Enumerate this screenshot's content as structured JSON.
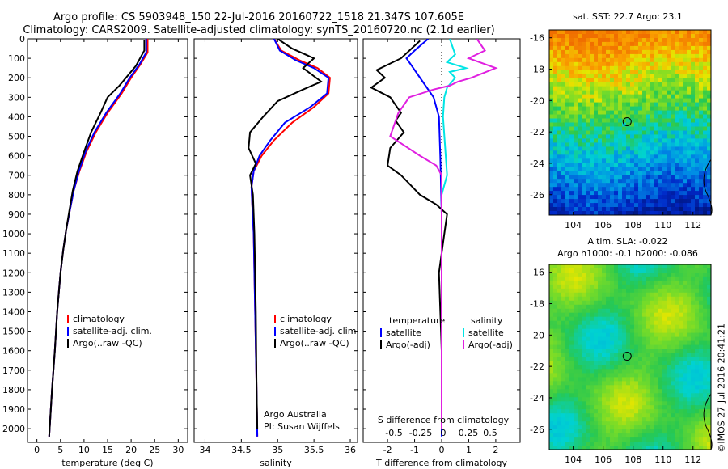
{
  "header": {
    "line1": "Argo profile: CS 5903948_150 22-Jul-2016 20160722_1518 21.347S 107.605E",
    "line2": "Climatology: CARS2009. Satellite-adjusted climatology: synTS_20160720.nc (2.1d earlier)"
  },
  "credit": "©IMOS 27-Jul-2016 20:41:21",
  "colors": {
    "clim": "#ff0000",
    "sat": "#0000ff",
    "argo": "#000000",
    "sal_sat": "#00e5e5",
    "sal_argo": "#e020e0"
  },
  "chart_data": [
    {
      "type": "line",
      "xlabel": "temperature (deg C)",
      "xticks": [
        0,
        5,
        10,
        15,
        20,
        25,
        30
      ],
      "xlim": [
        -2,
        32
      ],
      "yticks": [
        0,
        100,
        200,
        300,
        400,
        500,
        600,
        700,
        800,
        900,
        1000,
        1100,
        1200,
        1300,
        1400,
        1500,
        1600,
        1700,
        1800,
        1900,
        2000
      ],
      "ylim": [
        0,
        2070
      ],
      "legend": {
        "placement": "bottom-left",
        "entries": [
          "climatology",
          "satellite-adj. clim.",
          "Argo(..raw -QC)"
        ]
      },
      "series": [
        {
          "name": "climatology",
          "color": "#ff0000",
          "x": [
            23.5,
            23.5,
            22,
            20,
            18,
            15,
            12.5,
            10.5,
            9,
            7.8,
            7,
            6.2,
            5.6,
            5,
            4.3,
            3.8,
            3.2,
            2.6
          ],
          "y": [
            0,
            70,
            130,
            200,
            280,
            380,
            480,
            580,
            680,
            780,
            880,
            980,
            1080,
            1200,
            1400,
            1600,
            1800,
            2040
          ]
        },
        {
          "name": "satellite-adj. clim.",
          "color": "#0000ff",
          "x": [
            23.2,
            23.2,
            21.8,
            19.7,
            17.7,
            14.7,
            12.2,
            10.3,
            8.9,
            7.8,
            7,
            6.2,
            5.6,
            5,
            4.3,
            3.8,
            3.2,
            2.6
          ],
          "y": [
            0,
            70,
            130,
            200,
            280,
            380,
            480,
            580,
            680,
            780,
            880,
            980,
            1080,
            1200,
            1400,
            1600,
            1800,
            2040
          ]
        },
        {
          "name": "Argo(..raw -QC)",
          "color": "#000000",
          "x": [
            22.8,
            22.8,
            21,
            17.5,
            15,
            13.5,
            11.5,
            10,
            8.6,
            7.6,
            6.9,
            6.2,
            5.6,
            5,
            4.3,
            3.8,
            3.2,
            2.6
          ],
          "y": [
            5,
            60,
            140,
            240,
            300,
            380,
            480,
            580,
            680,
            780,
            880,
            980,
            1080,
            1200,
            1400,
            1600,
            1800,
            2040
          ]
        }
      ]
    },
    {
      "type": "line",
      "xlabel": "salinity",
      "xticks": [
        34,
        34.5,
        35,
        35.5,
        36
      ],
      "xlim": [
        33.85,
        36.1
      ],
      "ylim": [
        0,
        2070
      ],
      "legend": {
        "placement": "bottom-center",
        "entries": [
          "climatology",
          "satellite-adj. clim.",
          "Argo(..raw -QC)"
        ]
      },
      "annotation": [
        "Argo Australia",
        "PI: Susan Wijffels"
      ],
      "series": [
        {
          "name": "climatology",
          "color": "#ff0000",
          "x": [
            34.95,
            35.05,
            35.3,
            35.55,
            35.72,
            35.7,
            35.5,
            35.2,
            34.95,
            34.78,
            34.67,
            34.64,
            34.65,
            34.67,
            34.68,
            34.69,
            34.7,
            34.71,
            34.72
          ],
          "y": [
            0,
            60,
            110,
            150,
            200,
            280,
            350,
            430,
            520,
            600,
            680,
            760,
            850,
            1000,
            1200,
            1400,
            1600,
            1800,
            2040
          ]
        },
        {
          "name": "satellite-adj. clim.",
          "color": "#0000ff",
          "x": [
            34.95,
            35.03,
            35.25,
            35.5,
            35.7,
            35.68,
            35.45,
            35.1,
            34.9,
            34.75,
            34.67,
            34.64,
            34.65,
            34.67,
            34.68,
            34.69,
            34.7,
            34.71,
            34.72
          ],
          "y": [
            0,
            60,
            110,
            150,
            200,
            280,
            350,
            430,
            520,
            600,
            680,
            760,
            850,
            1000,
            1200,
            1400,
            1600,
            1800,
            2040
          ]
        },
        {
          "name": "Argo(..raw -QC)",
          "color": "#000000",
          "x": [
            35.0,
            35.2,
            35.5,
            35.35,
            35.6,
            35.35,
            35.0,
            34.8,
            34.62,
            34.6,
            34.7,
            34.62,
            34.66,
            34.68,
            34.7,
            34.71,
            34.72
          ],
          "y": [
            0,
            50,
            100,
            150,
            220,
            260,
            320,
            400,
            480,
            560,
            640,
            700,
            800,
            1000,
            1400,
            1800,
            2000
          ]
        }
      ]
    },
    {
      "type": "line",
      "xlabel": "T difference from climatology",
      "xticks": [
        -2,
        -1,
        0,
        1,
        2
      ],
      "xlim": [
        -2.9,
        2.9
      ],
      "top_axis_label": "S difference from climatology",
      "top_ticks": [
        "-0.5",
        "-0.25",
        "0",
        "0.25",
        "0.5"
      ],
      "ylim": [
        0,
        2070
      ],
      "legend": {
        "placement": "bottom",
        "entries": [
          "temperature",
          "satellite",
          "Argo(-adj)",
          "salinity",
          "satellite",
          "Argo(-adj)"
        ]
      },
      "series": [
        {
          "name": "temperature satellite",
          "color": "#0000ff",
          "x": [
            -0.5,
            -1.0,
            -1.3,
            -1.1,
            -0.7,
            -0.3,
            -0.1,
            -0.05,
            0,
            0
          ],
          "y": [
            0,
            60,
            100,
            140,
            220,
            300,
            400,
            600,
            900,
            2040
          ]
        },
        {
          "name": "temperature Argo(-adj)",
          "color": "#000000",
          "x": [
            -0.8,
            -1.5,
            -2.4,
            -2.1,
            -2.6,
            -1.9,
            -1.5,
            -1.7,
            -1.4,
            -1.9,
            -2.0,
            -1.5,
            -0.8,
            -0.2,
            0.2,
            0.1,
            -0.1,
            0,
            0
          ],
          "y": [
            10,
            100,
            160,
            200,
            250,
            300,
            380,
            420,
            480,
            560,
            650,
            700,
            800,
            850,
            900,
            1000,
            1200,
            1600,
            2000
          ]
        },
        {
          "name": "salinity satellite",
          "color": "#00e5e5",
          "x": [
            0.3,
            0.5,
            0.2,
            0.9,
            0.3,
            0.5,
            0.2,
            0.1,
            0.05,
            0.2,
            0,
            0
          ],
          "y": [
            0,
            80,
            120,
            150,
            170,
            200,
            250,
            300,
            400,
            700,
            800,
            2000
          ]
        },
        {
          "name": "salinity Argo(-adj)",
          "color": "#e020e0",
          "x": [
            1.3,
            1.6,
            1.0,
            2.0,
            1.1,
            0.6,
            0.3,
            -0.3,
            -1.2,
            -1.6,
            -1.9,
            -0.8,
            -0.2,
            0,
            0
          ],
          "y": [
            0,
            60,
            100,
            150,
            200,
            220,
            240,
            260,
            300,
            380,
            500,
            600,
            650,
            700,
            2000
          ]
        }
      ]
    },
    {
      "type": "heatmap",
      "title": "sat. SST: 22.7 Argo: 23.1",
      "xticks": [
        104,
        106,
        108,
        110,
        112
      ],
      "yticks": [
        -16,
        -18,
        -20,
        -22,
        -24,
        -26
      ],
      "xlim": [
        102.4,
        113.2
      ],
      "ylim": [
        -27.3,
        -15.5
      ],
      "marker": {
        "lon": 107.6,
        "lat": -21.35
      }
    },
    {
      "type": "heatmap",
      "title": "Altim. SLA: -0.022",
      "subtitle": "Argo h1000: -0.1 h2000: -0.086",
      "xticks": [
        104,
        106,
        108,
        110,
        112
      ],
      "yticks": [
        -16,
        -18,
        -20,
        -22,
        -24,
        -26
      ],
      "xlim": [
        102.4,
        113.2
      ],
      "ylim": [
        -27.3,
        -15.5
      ],
      "marker": {
        "lon": 107.6,
        "lat": -21.35
      }
    }
  ]
}
